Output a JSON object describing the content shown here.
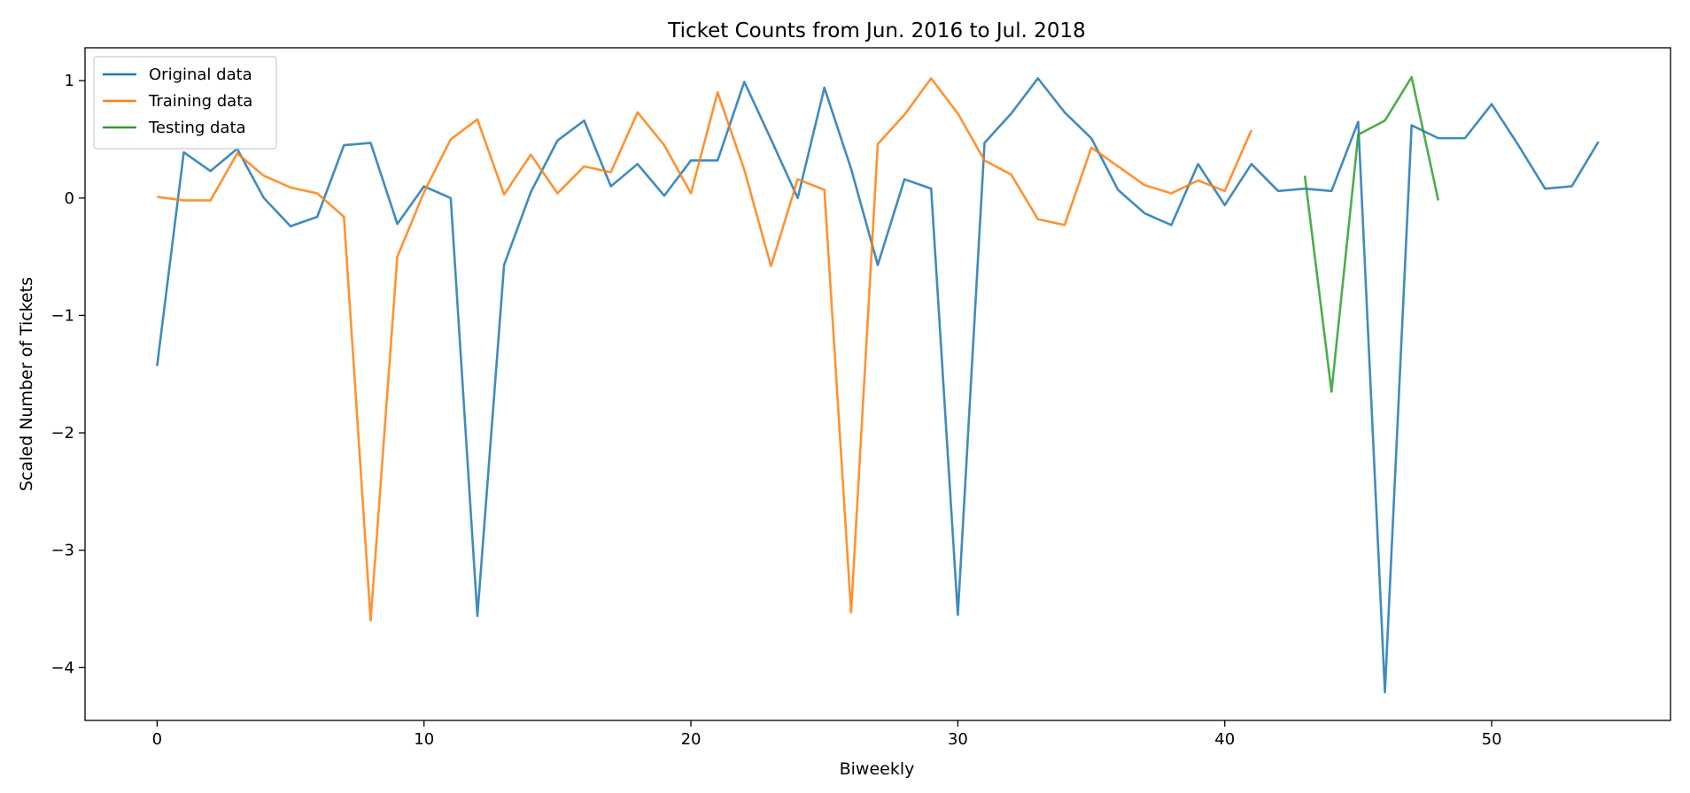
{
  "chart_data": {
    "type": "line",
    "title": "Ticket Counts from Jun. 2016 to Jul. 2018",
    "xlabel": "Biweekly",
    "ylabel": "Scaled Number of Tickets",
    "xlim": [
      -2.7,
      56.7
    ],
    "ylim": [
      -4.45,
      1.28
    ],
    "xticks": [
      0,
      10,
      20,
      30,
      40,
      50
    ],
    "yticks": [
      1,
      0,
      -1,
      -2,
      -3,
      -4
    ],
    "ytick_labels": [
      "1",
      "0",
      "−1",
      "−2",
      "−3",
      "−4"
    ],
    "grid": false,
    "legend_position": "top-left",
    "series": [
      {
        "name": "Original data",
        "color": "#1f77b4",
        "x_start": 0,
        "values": [
          -1.43,
          0.39,
          0.23,
          0.42,
          0.0,
          -0.24,
          -0.16,
          0.45,
          0.47,
          -0.22,
          0.1,
          0.0,
          -3.56,
          -0.57,
          0.05,
          0.49,
          0.66,
          0.1,
          0.29,
          0.02,
          0.32,
          0.32,
          0.99,
          0.5,
          0.0,
          0.94,
          0.25,
          -0.57,
          0.16,
          0.08,
          -3.55,
          0.47,
          0.72,
          1.02,
          0.73,
          0.51,
          0.07,
          -0.13,
          -0.23,
          0.29,
          -0.06,
          0.29,
          0.06,
          0.08,
          0.06,
          0.65,
          -4.21,
          0.62,
          0.51,
          0.51,
          0.8,
          0.45,
          0.08,
          0.1,
          0.48
        ]
      },
      {
        "name": "Training data",
        "color": "#ff7f0e",
        "x_start": 0,
        "values": [
          0.01,
          -0.02,
          -0.02,
          0.38,
          0.19,
          0.09,
          0.04,
          -0.16,
          -3.6,
          -0.5,
          0.05,
          0.5,
          0.67,
          0.03,
          0.37,
          0.04,
          0.27,
          0.22,
          0.73,
          0.45,
          0.04,
          0.9,
          0.24,
          -0.58,
          0.16,
          0.07,
          -3.53,
          0.46,
          0.71,
          1.02,
          0.72,
          0.32,
          0.2,
          -0.18,
          -0.23,
          0.43,
          0.27,
          0.11,
          0.04,
          0.15,
          0.06,
          0.58
        ]
      },
      {
        "name": "Testing data",
        "color": "#2ca02c",
        "x_start": 43,
        "values": [
          0.19,
          -1.65,
          0.54,
          0.66,
          1.03,
          -0.02
        ]
      }
    ]
  }
}
